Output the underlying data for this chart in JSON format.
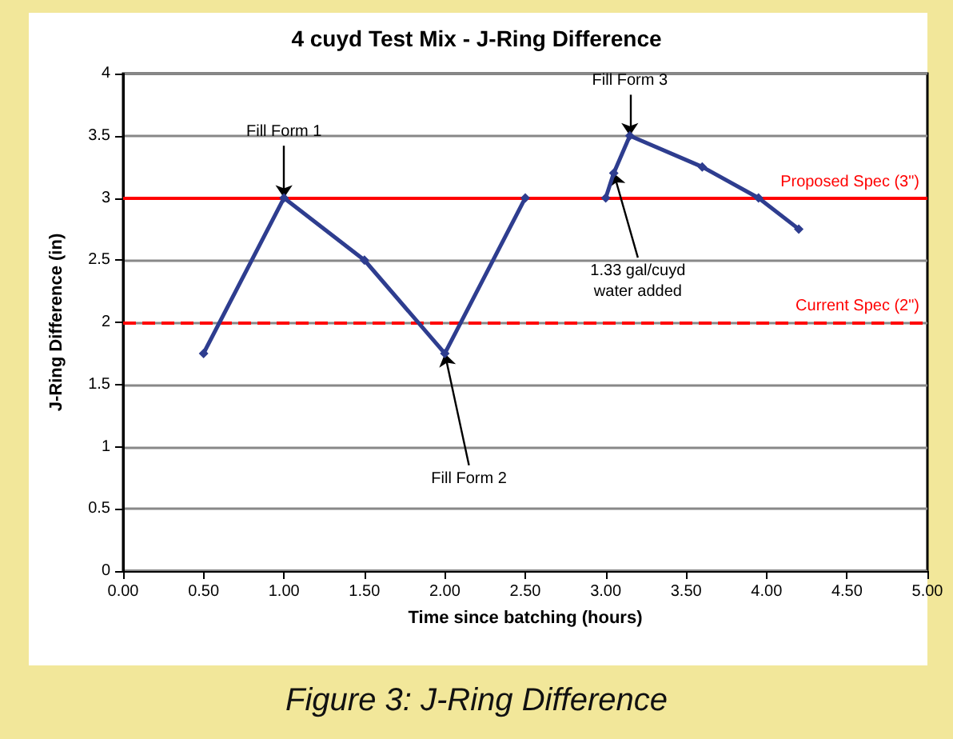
{
  "chart_data": {
    "type": "line",
    "title": "4 cuyd Test Mix - J-Ring Difference",
    "xlabel": "Time since batching (hours)",
    "ylabel": "J-Ring Difference (in)",
    "x": [
      0.5,
      1,
      1.5,
      2,
      2.5,
      null,
      3,
      3.05,
      3.15,
      3.6,
      3.95,
      4.2
    ],
    "series": [
      {
        "color": "#2e3d8f",
        "values": [
          1.75,
          3,
          2.5,
          1.75,
          3,
          null,
          3,
          3.2,
          3.5,
          3.25,
          3,
          2.75
        ]
      }
    ],
    "xlim": [
      0,
      5
    ],
    "xticks": [
      {
        "value": 0,
        "label": "0.00"
      },
      {
        "value": 0.5,
        "label": "0.50"
      },
      {
        "value": 1,
        "label": "1.00"
      },
      {
        "value": 1.5,
        "label": "1.50"
      },
      {
        "value": 2,
        "label": "2.00"
      },
      {
        "value": 2.5,
        "label": "2.50"
      },
      {
        "value": 3,
        "label": "3.00"
      },
      {
        "value": 3.5,
        "label": "3.50"
      },
      {
        "value": 4,
        "label": "4.00"
      },
      {
        "value": 4.5,
        "label": "4.50"
      },
      {
        "value": 5,
        "label": "5.00"
      }
    ],
    "ylim": [
      0,
      4
    ],
    "yticks": [
      0,
      0.5,
      1,
      1.5,
      2,
      2.5,
      3,
      3.5,
      4
    ],
    "grid": "y",
    "marker": "diamond",
    "line_style": "solid",
    "ref_lines": [
      {
        "axis": "y",
        "value": 3,
        "label": "Proposed Spec (3\")",
        "color": "#ff0000",
        "line_style": "solid"
      },
      {
        "axis": "y",
        "value": 2,
        "label": "Current Spec (2\")",
        "color": "#ff0000",
        "line_style": "dashed"
      }
    ],
    "annotations": [
      {
        "text": "Fill Form 1",
        "x": 1,
        "y": 3
      },
      {
        "text": "Fill Form 2",
        "x": 2,
        "y": 1.75
      },
      {
        "text": "Fill Form 3",
        "x": 3.15,
        "y": 3.5
      },
      {
        "text": "1.33 gal/cuyd\nwater added",
        "x": 3.05,
        "y": 3.2
      },
      "Figure 3: J-Ring Difference"
    ]
  }
}
